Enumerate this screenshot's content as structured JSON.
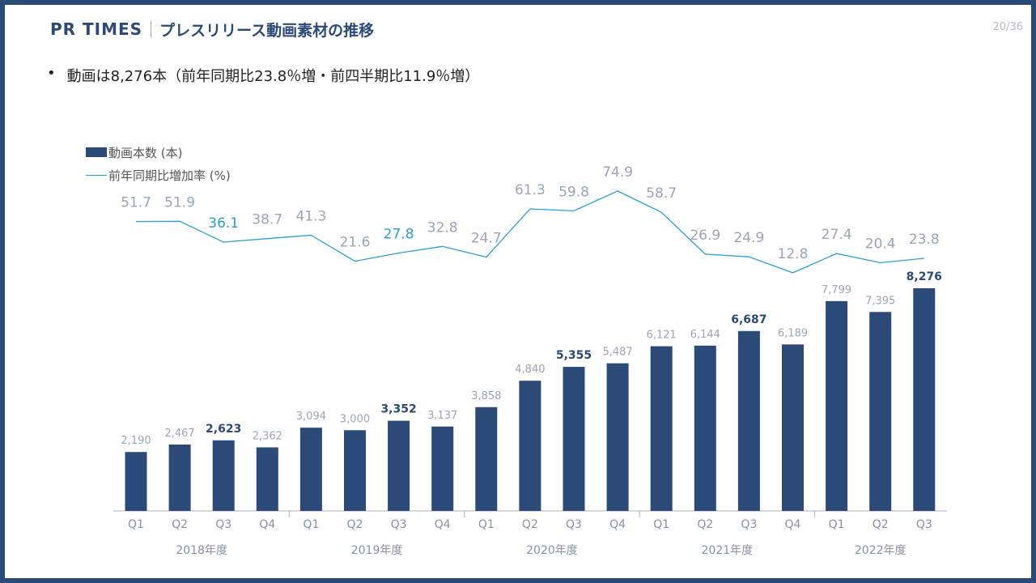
{
  "header": {
    "brand": "PR TIMES",
    "title": "プレスリリース動画素材の推移",
    "page": "20/36"
  },
  "summary": "動画は8,276本（前年同期比23.8％増・前四半期比11.9％増）",
  "legend": {
    "bars": "動画本数 (本)",
    "line": "前年同期比増加率 (%)"
  },
  "colors": {
    "bar": "#2b4a78",
    "line": "#2a9fd8",
    "label_muted": "#9aa5b5",
    "label_highlight_bar": "#2b4a78",
    "label_highlight_line": "#2a9fd8",
    "axis": "#b0b0b0",
    "frame": "#2b4a78"
  },
  "chart_data": {
    "type": "bar+line",
    "categories": [
      "Q1",
      "Q2",
      "Q3",
      "Q4",
      "Q1",
      "Q2",
      "Q3",
      "Q4",
      "Q1",
      "Q2",
      "Q3",
      "Q4",
      "Q1",
      "Q2",
      "Q3",
      "Q4",
      "Q1",
      "Q2",
      "Q3"
    ],
    "groups": [
      {
        "label": "2018年度",
        "count": 4
      },
      {
        "label": "2019年度",
        "count": 4
      },
      {
        "label": "2020年度",
        "count": 4
      },
      {
        "label": "2021年度",
        "count": 4
      },
      {
        "label": "2022年度",
        "count": 3
      }
    ],
    "series": [
      {
        "kind": "bar",
        "values": [
          2190,
          2467,
          2623,
          2362,
          3094,
          3000,
          3352,
          3137,
          3858,
          4840,
          5355,
          5487,
          6121,
          6144,
          6687,
          6189,
          7799,
          7395,
          8276
        ],
        "labels": [
          "2,190",
          "2,467",
          "2,623",
          "2,362",
          "3,094",
          "3,000",
          "3,352",
          "3,137",
          "3,858",
          "4,840",
          "5,355",
          "5,487",
          "6,121",
          "6,144",
          "6,687",
          "6,189",
          "7,799",
          "7,395",
          "8,276"
        ],
        "highlight": [
          false,
          false,
          true,
          false,
          false,
          false,
          true,
          false,
          false,
          false,
          true,
          false,
          false,
          false,
          true,
          false,
          false,
          false,
          true
        ]
      },
      {
        "kind": "line",
        "values": [
          51.7,
          51.9,
          36.1,
          38.7,
          41.3,
          21.6,
          27.8,
          32.8,
          24.7,
          61.3,
          59.8,
          74.9,
          58.7,
          26.9,
          24.9,
          12.8,
          27.4,
          20.4,
          23.8
        ],
        "labels": [
          "51.7",
          "51.9",
          "36.1",
          "38.7",
          "41.3",
          "21.6",
          "27.8",
          "32.8",
          "24.7",
          "61.3",
          "59.8",
          "74.9",
          "58.7",
          "26.9",
          "24.9",
          "12.8",
          "27.4",
          "20.4",
          "23.8"
        ],
        "highlight": [
          false,
          false,
          true,
          false,
          false,
          false,
          true,
          false,
          false,
          false,
          false,
          false,
          false,
          false,
          false,
          false,
          false,
          false,
          false
        ]
      }
    ],
    "grid": false,
    "legend_position": "top-left"
  }
}
